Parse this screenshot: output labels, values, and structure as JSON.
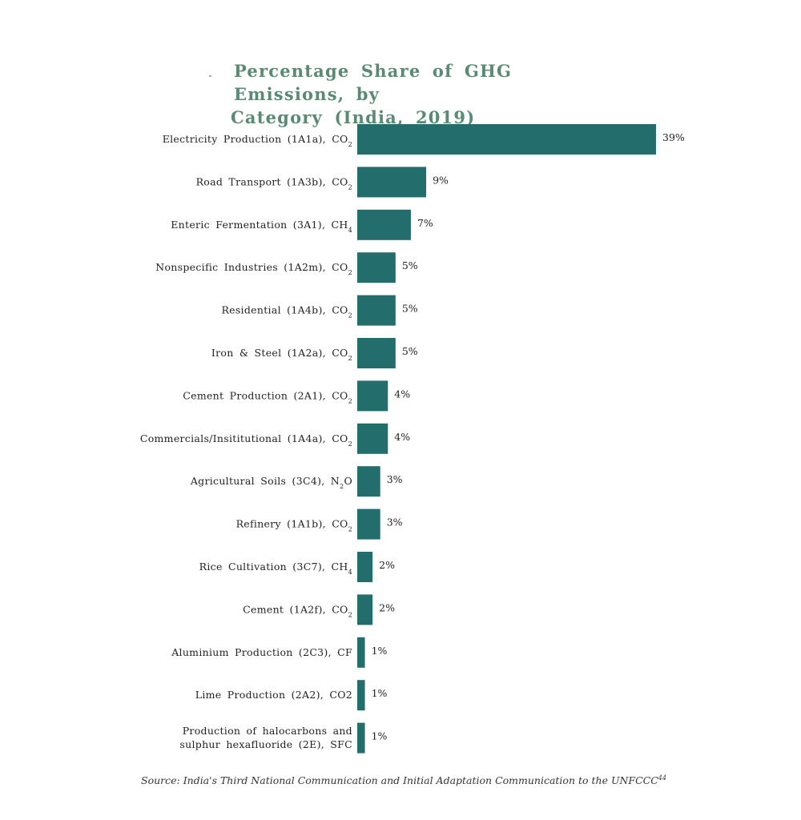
{
  "title_line1": "Percentage Share of GHG Emissions, by",
  "title_line2": "Category (India, 2019)",
  "source_text": "Source: India's Third National Communication and Initial Adaptation Communication to the UNFCCC",
  "source_ref": "44",
  "colors": {
    "bar": "#236e6c",
    "title": "#5a8a74",
    "text": "#222222"
  },
  "chart_data": {
    "type": "bar",
    "orientation": "horizontal",
    "title": "Percentage Share of GHG Emissions, by Category (India, 2019)",
    "unit": "%",
    "categories": [
      [
        {
          "t": "Electricity Production (1A1a), CO"
        },
        {
          "s": "2"
        }
      ],
      [
        {
          "t": "Road Transport (1A3b), CO"
        },
        {
          "s": "2"
        }
      ],
      [
        {
          "t": "Enteric Fermentation (3A1), CH"
        },
        {
          "s": "4"
        }
      ],
      [
        {
          "t": "Nonspecific Industries (1A2m), CO"
        },
        {
          "s": "2"
        }
      ],
      [
        {
          "t": "Residential (1A4b), CO"
        },
        {
          "s": "2"
        }
      ],
      [
        {
          "t": "Iron & Steel (1A2a), CO"
        },
        {
          "s": "2"
        }
      ],
      [
        {
          "t": "Cement Production (2A1), CO"
        },
        {
          "s": "2"
        }
      ],
      [
        {
          "t": "Commercials/Insititutional (1A4a), CO"
        },
        {
          "s": "2"
        }
      ],
      [
        {
          "t": "Agricultural Soils (3C4), N"
        },
        {
          "s": "2"
        },
        {
          "t": "O"
        }
      ],
      [
        {
          "t": "Refinery (1A1b), CO"
        },
        {
          "s": "2"
        }
      ],
      [
        {
          "t": "Rice Cultivation (3C7), CH"
        },
        {
          "s": "4"
        }
      ],
      [
        {
          "t": "Cement (1A2f), CO"
        },
        {
          "s": "2"
        }
      ],
      [
        {
          "t": "Aluminium Production (2C3), CF"
        }
      ],
      [
        {
          "t": "Lime Production (2A2), CO2"
        }
      ],
      [
        {
          "t": "Production of halocarbons and"
        },
        {
          "br": true
        },
        {
          "t": "sulphur hexafluoride (2E), SFC"
        }
      ]
    ],
    "values": [
      39,
      9,
      7,
      5,
      5,
      5,
      4,
      4,
      3,
      3,
      2,
      2,
      1,
      1,
      1
    ],
    "value_labels": [
      "39%",
      "9%",
      "7%",
      "5%",
      "5%",
      "5%",
      "4%",
      "4%",
      "3%",
      "3%",
      "2%",
      "2%",
      "1%",
      "1%",
      "1%"
    ],
    "xlim": [
      0,
      39
    ]
  }
}
